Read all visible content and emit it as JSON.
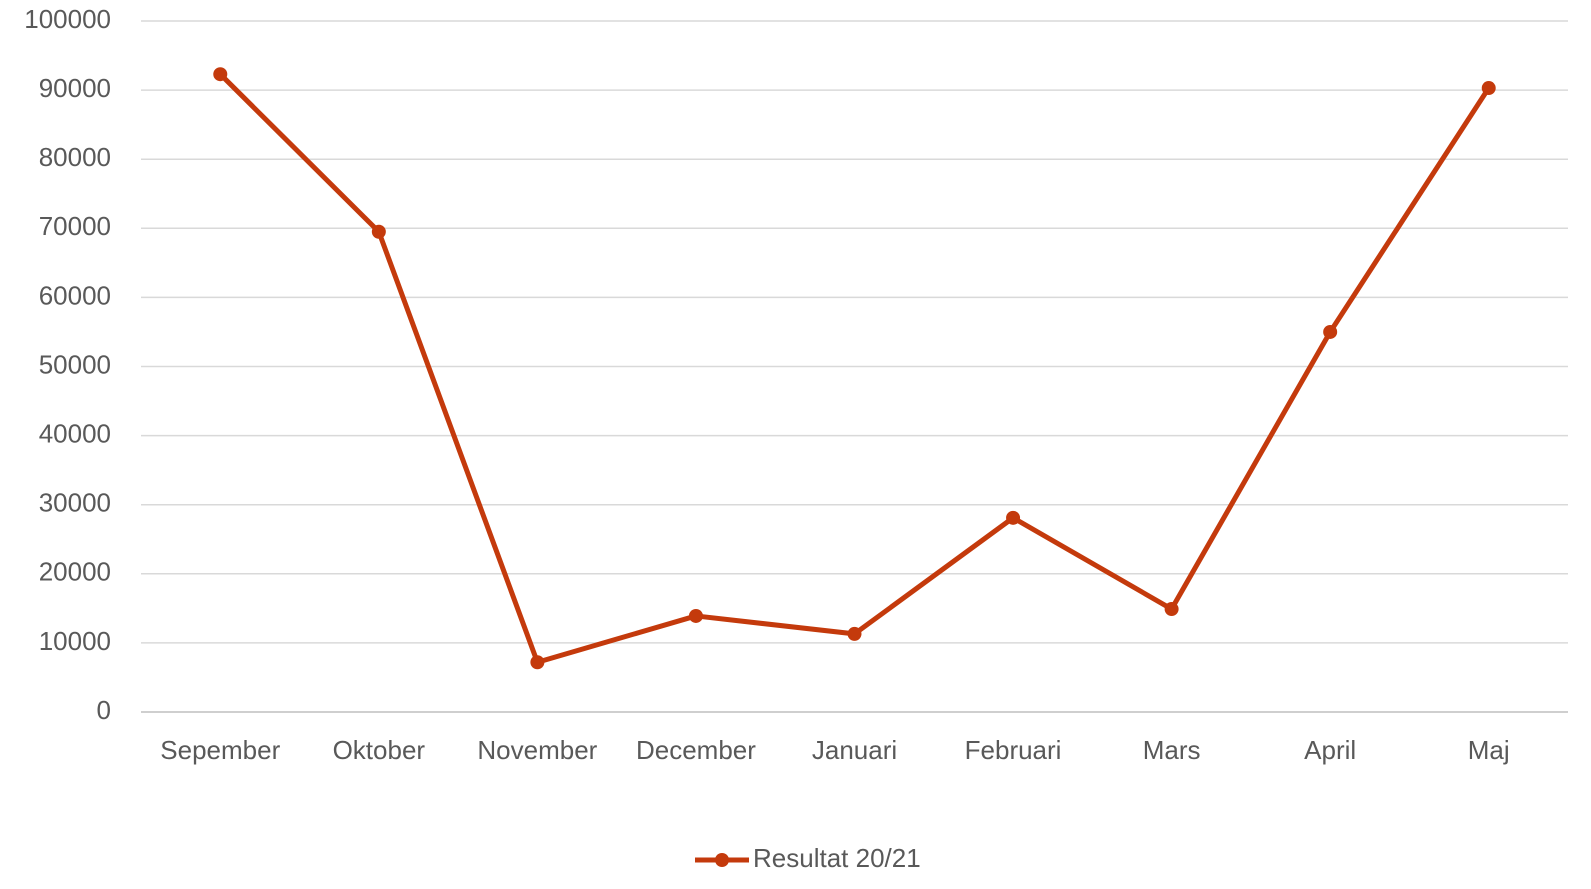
{
  "chart_data": {
    "type": "line",
    "categories": [
      "Sepember",
      "Oktober",
      "November",
      "December",
      "Januari",
      "Februari",
      "Mars",
      "April",
      "Maj"
    ],
    "series": [
      {
        "name": "Resultat 20/21",
        "color": "#c43a0c",
        "values": [
          92300,
          69500,
          7200,
          13900,
          11300,
          28100,
          14900,
          55000,
          90300
        ]
      }
    ],
    "ylim": [
      0,
      100000
    ],
    "yticks": [
      0,
      10000,
      20000,
      30000,
      40000,
      50000,
      60000,
      70000,
      80000,
      90000,
      100000
    ],
    "grid": true,
    "legend": "bottom"
  }
}
